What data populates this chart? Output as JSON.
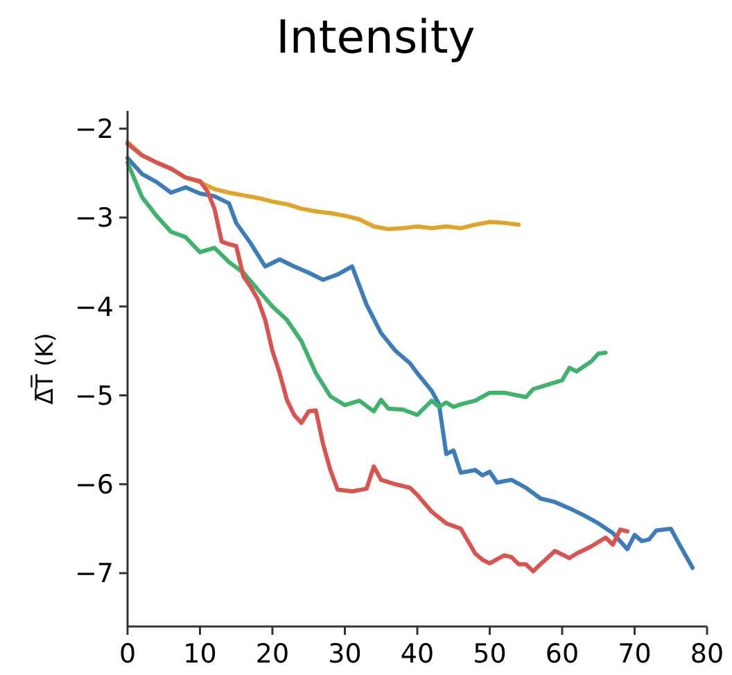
{
  "chart_data": {
    "type": "line",
    "title": "Intensity",
    "ylabel": "Δ̅T̅ (K)",
    "xlim": [
      0,
      80
    ],
    "xticks": [
      0,
      10,
      20,
      30,
      40,
      50,
      60,
      70,
      80
    ],
    "ylim": [
      -7.6,
      -1.8
    ],
    "yticks": [
      -2,
      -3,
      -4,
      -5,
      -6,
      -7
    ],
    "grid": false,
    "marker": "none",
    "line_style": "solid",
    "series": [
      {
        "color": "#e0a42a",
        "x": [
          0,
          2,
          4,
          6,
          8,
          10,
          12,
          14,
          16,
          18,
          20,
          22,
          24,
          26,
          28,
          30,
          32,
          34,
          36,
          38,
          40,
          42,
          44,
          46,
          48,
          50,
          52,
          54
        ],
        "values": [
          -2.15,
          -2.3,
          -2.38,
          -2.45,
          -2.55,
          -2.6,
          -2.68,
          -2.72,
          -2.75,
          -2.78,
          -2.82,
          -2.85,
          -2.9,
          -2.93,
          -2.95,
          -2.98,
          -3.02,
          -3.1,
          -3.13,
          -3.12,
          -3.1,
          -3.12,
          -3.1,
          -3.12,
          -3.08,
          -3.05,
          -3.06,
          -3.08
        ]
      },
      {
        "color": "#3c7cbb",
        "x": [
          0,
          2,
          4,
          6,
          8,
          10,
          12,
          14,
          15,
          17,
          19,
          21,
          23,
          25,
          27,
          29,
          31,
          33,
          35,
          37,
          39,
          40,
          42,
          43,
          44,
          45,
          46,
          48,
          49,
          50,
          51,
          53,
          55,
          57,
          59,
          61,
          63,
          65,
          67,
          69,
          70,
          71,
          72,
          73,
          75,
          76,
          78
        ],
        "values": [
          -2.33,
          -2.51,
          -2.6,
          -2.72,
          -2.66,
          -2.73,
          -2.76,
          -2.84,
          -3.06,
          -3.29,
          -3.55,
          -3.47,
          -3.55,
          -3.62,
          -3.7,
          -3.64,
          -3.55,
          -3.98,
          -4.3,
          -4.5,
          -4.64,
          -4.75,
          -4.95,
          -5.1,
          -5.66,
          -5.62,
          -5.87,
          -5.84,
          -5.9,
          -5.86,
          -5.98,
          -5.95,
          -6.04,
          -6.16,
          -6.2,
          -6.27,
          -6.35,
          -6.44,
          -6.55,
          -6.73,
          -6.57,
          -6.64,
          -6.62,
          -6.52,
          -6.5,
          -6.65,
          -6.94
        ]
      },
      {
        "color": "#3fb26b",
        "x": [
          0,
          2,
          4,
          6,
          8,
          10,
          12,
          14,
          16,
          18,
          20,
          22,
          24,
          26,
          28,
          30,
          32,
          34,
          35,
          36,
          38,
          40,
          42,
          43,
          44,
          45,
          46,
          48,
          50,
          52,
          55,
          56,
          58,
          60,
          61,
          62,
          64,
          65,
          66
        ],
        "values": [
          -2.38,
          -2.77,
          -2.98,
          -3.16,
          -3.22,
          -3.39,
          -3.34,
          -3.5,
          -3.62,
          -3.81,
          -4.0,
          -4.15,
          -4.39,
          -4.75,
          -5.01,
          -5.11,
          -5.06,
          -5.18,
          -5.05,
          -5.15,
          -5.16,
          -5.22,
          -5.06,
          -5.13,
          -5.08,
          -5.13,
          -5.1,
          -5.06,
          -4.97,
          -4.97,
          -5.02,
          -4.93,
          -4.88,
          -4.83,
          -4.69,
          -4.73,
          -4.62,
          -4.53,
          -4.52
        ]
      },
      {
        "color": "#d9534f",
        "x": [
          0,
          2,
          4,
          6,
          8,
          10,
          11,
          12,
          13,
          14,
          15,
          16,
          17,
          18,
          19,
          20,
          21,
          22,
          23,
          24,
          25,
          26,
          27,
          28,
          29,
          31,
          33,
          34,
          35,
          37,
          39,
          40,
          42,
          44,
          46,
          48,
          49,
          50,
          52,
          53,
          54,
          55,
          56,
          57,
          59,
          61,
          62,
          64,
          66,
          67,
          68,
          69
        ],
        "values": [
          -2.17,
          -2.3,
          -2.38,
          -2.45,
          -2.55,
          -2.59,
          -2.7,
          -2.9,
          -3.27,
          -3.3,
          -3.32,
          -3.66,
          -3.78,
          -3.92,
          -4.15,
          -4.5,
          -4.75,
          -5.05,
          -5.22,
          -5.31,
          -5.18,
          -5.17,
          -5.55,
          -5.84,
          -6.06,
          -6.08,
          -6.05,
          -5.8,
          -5.95,
          -6.0,
          -6.04,
          -6.12,
          -6.31,
          -6.44,
          -6.5,
          -6.78,
          -6.85,
          -6.89,
          -6.8,
          -6.82,
          -6.9,
          -6.9,
          -6.98,
          -6.9,
          -6.75,
          -6.83,
          -6.78,
          -6.7,
          -6.6,
          -6.68,
          -6.51,
          -6.53
        ]
      }
    ]
  }
}
